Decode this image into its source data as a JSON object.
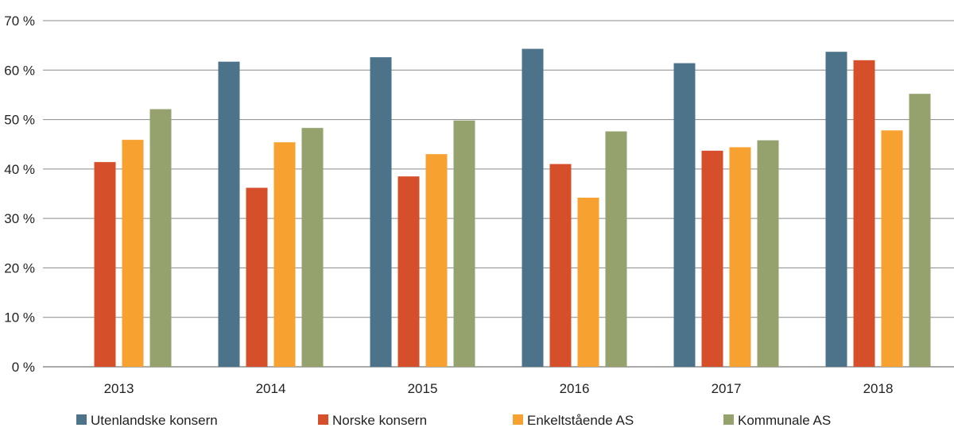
{
  "chart_data": {
    "type": "bar",
    "title": "",
    "xlabel": "",
    "ylabel": "",
    "categories": [
      "2013",
      "2014",
      "2015",
      "2016",
      "2017",
      "2018"
    ],
    "ylim": [
      0,
      70
    ],
    "yticks": [
      0,
      10,
      20,
      30,
      40,
      50,
      60,
      70
    ],
    "ytick_labels": [
      "0 %",
      "10 %",
      "20 %",
      "30 %",
      "40 %",
      "50 %",
      "60 %",
      "70 %"
    ],
    "grid": true,
    "legend_position": "bottom",
    "series": [
      {
        "name": "Utenlandske konsern",
        "color": "#4c7389",
        "values": [
          null,
          61.7,
          62.6,
          64.3,
          61.4,
          63.7
        ]
      },
      {
        "name": "Norske konsern",
        "color": "#d44f2a",
        "values": [
          41.4,
          36.2,
          38.5,
          41.0,
          43.7,
          62.0
        ]
      },
      {
        "name": "Enkeltstående AS",
        "color": "#f7a130",
        "values": [
          45.9,
          45.4,
          43.0,
          34.2,
          44.4,
          47.8
        ]
      },
      {
        "name": "Kommunale AS",
        "color": "#96a26e",
        "values": [
          52.1,
          48.3,
          49.8,
          47.6,
          45.8,
          55.2
        ]
      }
    ]
  }
}
